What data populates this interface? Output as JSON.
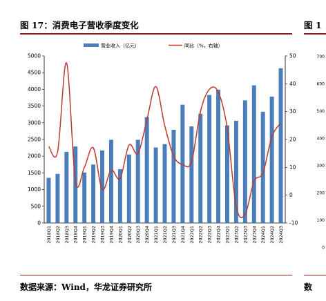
{
  "figure": {
    "title": "图 17：消费电子营收季度变化",
    "source": "数据来源：Wind，华龙证券研究所",
    "next_title": "图 1",
    "next_source": "数",
    "next_ticks": [
      "700",
      "600",
      "500",
      "400",
      "300",
      "200",
      "100",
      "0"
    ]
  },
  "colors": {
    "bar": "#4a7ebb",
    "line": "#c0392b",
    "rule": "#8b1a1a"
  },
  "chart_data": {
    "type": "bar",
    "legend": {
      "placement": "top",
      "bar_label": "营业收入（亿元）",
      "line_label": "同比（%，右轴）"
    },
    "categories": [
      "2018Q1",
      "2018Q2",
      "2018Q3",
      "2018Q4",
      "2019Q1",
      "2019Q2",
      "2019Q3",
      "2019Q4",
      "2020Q1",
      "2020Q2",
      "2020Q3",
      "2020Q4",
      "2021Q1",
      "2021Q2",
      "2021Q3",
      "2021Q4",
      "2022Q1",
      "2022Q2",
      "2022Q3",
      "2022Q4",
      "2023Q1",
      "2023Q2",
      "2023Q3",
      "2023Q4",
      "2024Q1",
      "2024Q2",
      "2024Q3"
    ],
    "series": [
      {
        "name": "营业收入（亿元）",
        "type": "bar",
        "axis": "left",
        "values": [
          1350,
          1470,
          2130,
          2290,
          1510,
          1750,
          2170,
          2490,
          1610,
          2050,
          2490,
          3170,
          2260,
          2360,
          2790,
          3540,
          2890,
          3270,
          3830,
          3990,
          2920,
          3060,
          3670,
          4120,
          3330,
          3780,
          4630
        ]
      },
      {
        "name": "同比（%，右轴）",
        "type": "line",
        "axis": "right",
        "values": [
          17.5,
          15.5,
          47.5,
          5,
          10,
          17,
          2,
          9,
          6,
          18,
          15,
          27,
          39,
          25,
          14,
          11,
          12,
          30,
          38,
          37,
          24,
          -4,
          -7,
          5,
          8,
          21,
          26
        ]
      }
    ],
    "y_left": {
      "min": 0,
      "max": 5000,
      "ticks": [
        0,
        500,
        1000,
        1500,
        2000,
        2500,
        3000,
        3500,
        4000,
        4500,
        5000
      ]
    },
    "y_right": {
      "min": -10,
      "max": 50,
      "ticks": [
        -10,
        0,
        10,
        20,
        30,
        40,
        50
      ]
    },
    "grid": false
  }
}
